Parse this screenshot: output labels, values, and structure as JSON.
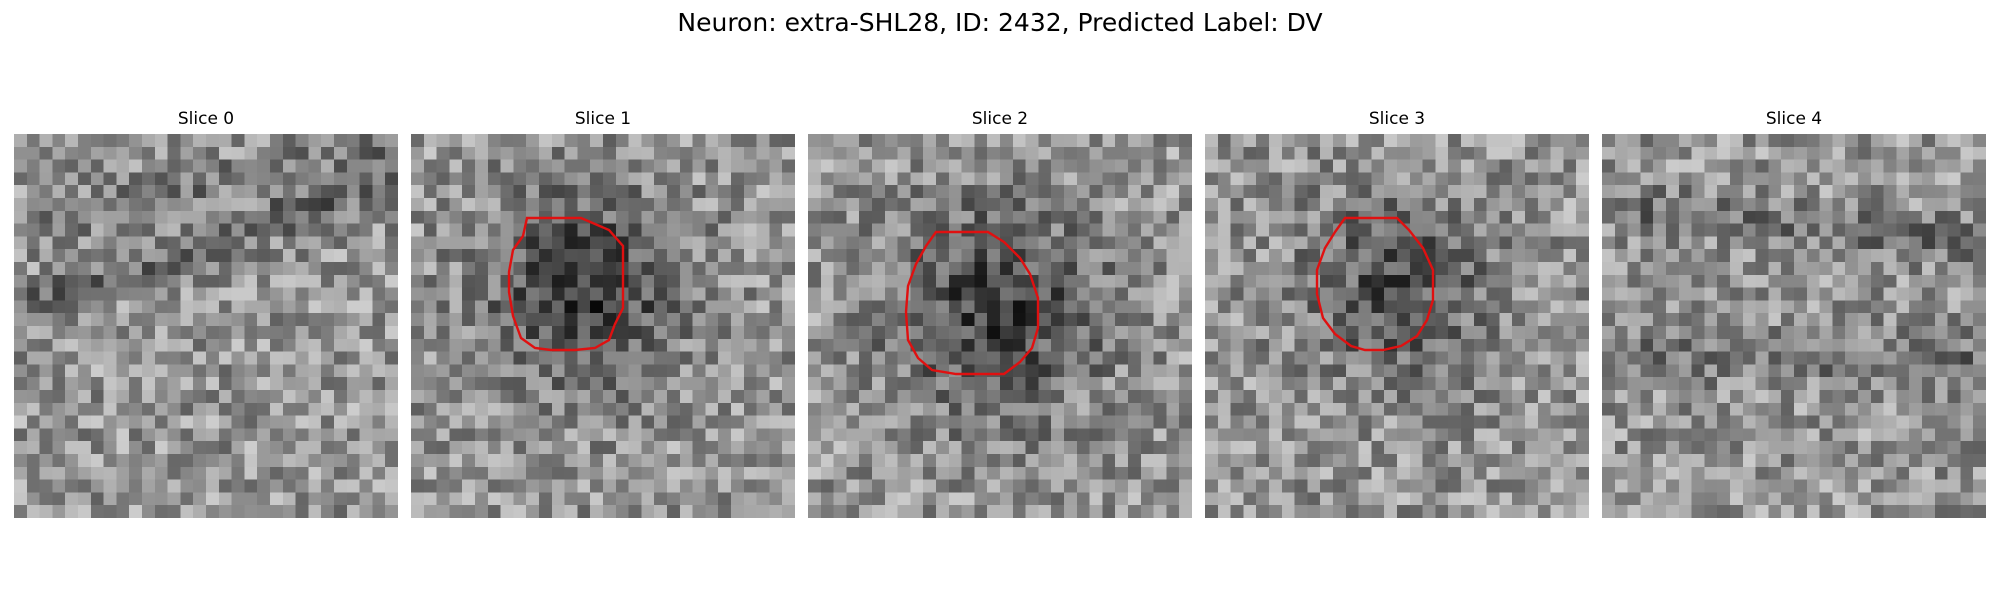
{
  "title": "Neuron: extra-SHL28, ID: 2432, Predicted Label: DV",
  "colors": {
    "contour": "#e01010",
    "background": "#ffffff"
  },
  "panels": [
    {
      "title": "Slice 0",
      "has_contour": false
    },
    {
      "title": "Slice 1",
      "has_contour": true
    },
    {
      "title": "Slice 2",
      "has_contour": true
    },
    {
      "title": "Slice 3",
      "has_contour": true
    },
    {
      "title": "Slice 4",
      "has_contour": false
    }
  ]
}
